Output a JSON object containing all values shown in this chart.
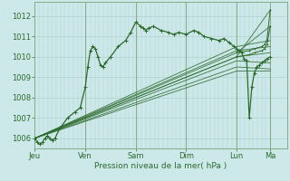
{
  "title": "",
  "xlabel": "Pression niveau de la mer( hPa )",
  "background_color": "#cce8e8",
  "grid_color": "#aacccc",
  "line_color": "#2d6a2d",
  "ylim": [
    1005.5,
    1012.7
  ],
  "yticks": [
    1006,
    1007,
    1008,
    1009,
    1010,
    1011,
    1012
  ],
  "x_days": [
    "Jeu",
    "Ven",
    "Sam",
    "Dim",
    "Lun",
    "Ma"
  ],
  "x_day_positions": [
    0.0,
    0.2,
    0.4,
    0.6,
    0.8,
    0.933
  ],
  "xlim": [
    0.0,
    1.0
  ]
}
